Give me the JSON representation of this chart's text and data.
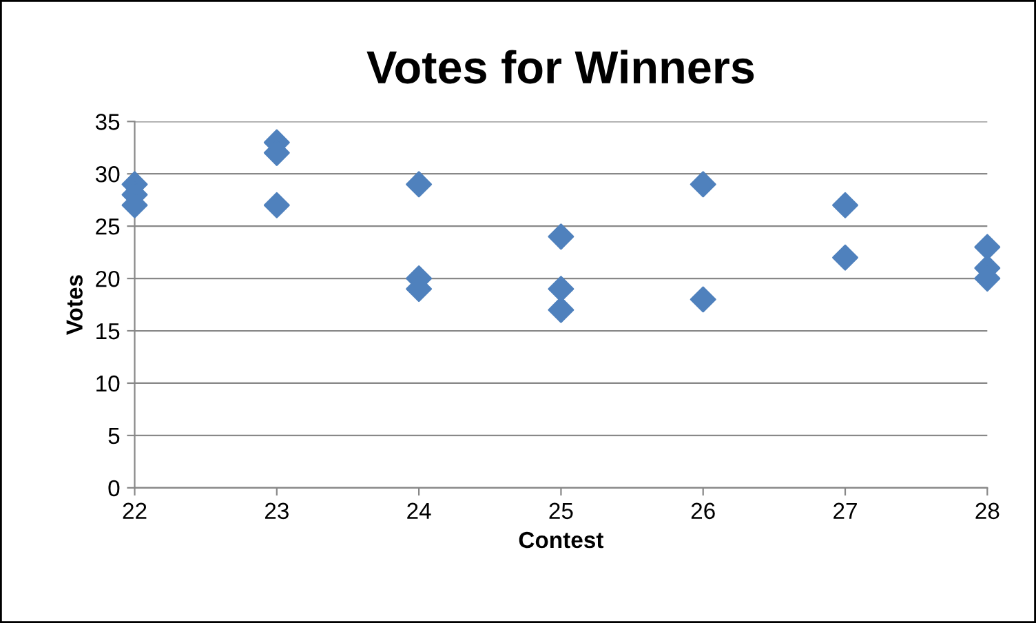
{
  "chart_data": {
    "type": "scatter",
    "title": "Votes for Winners",
    "xlabel": "Contest",
    "ylabel": "Votes",
    "x": [
      22,
      22,
      22,
      23,
      23,
      23,
      24,
      24,
      24,
      25,
      25,
      25,
      26,
      26,
      27,
      27,
      28,
      28,
      28
    ],
    "values": [
      29,
      28,
      27,
      33,
      32,
      27,
      29,
      20,
      19,
      24,
      19,
      17,
      29,
      18,
      27,
      22,
      23,
      21,
      20
    ],
    "color": "#4f81bd",
    "marker": "diamond",
    "grid": "y",
    "legend": false,
    "xlim": [
      22,
      28
    ],
    "xticks": [
      22,
      23,
      24,
      25,
      26,
      27,
      28
    ],
    "ylim": [
      0,
      35
    ],
    "yticks": [
      0,
      5,
      10,
      15,
      20,
      25,
      30,
      35
    ]
  }
}
